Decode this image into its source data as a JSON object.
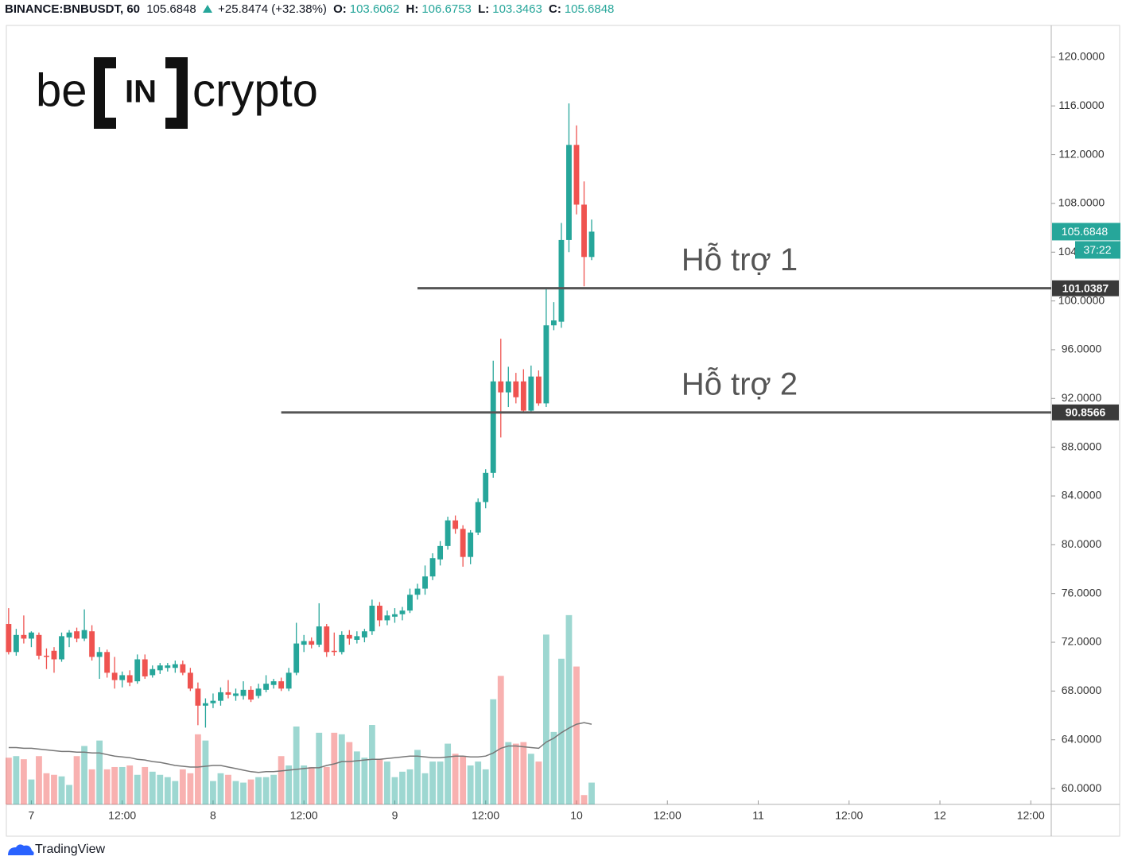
{
  "chart_data": {
    "type": "candlestick",
    "symbol": "BINANCE:BNBUSDT, 60",
    "change": "+25.8474 (+32.38%)",
    "ohlc_labels": [
      "O:",
      "H:",
      "L:",
      "C:"
    ],
    "countdown": "37:22",
    "watermark": {
      "left": "be",
      "mid": "IN",
      "right": "crypto"
    },
    "footer": "TradingView",
    "up_color": "#26a69a",
    "down_color": "#ef5350",
    "x": [
      -3,
      -2,
      -1,
      0,
      1,
      2,
      3,
      4,
      5,
      6,
      7,
      8,
      9,
      10,
      11,
      12,
      13,
      14,
      15,
      16,
      17,
      18,
      19,
      20,
      21,
      22,
      23,
      24,
      25,
      26,
      27,
      28,
      29,
      30,
      31,
      32,
      33,
      34,
      35,
      36,
      37,
      38,
      39,
      40,
      41,
      42,
      43,
      44,
      45,
      46,
      47,
      48,
      49,
      50,
      51,
      52,
      53,
      54,
      55,
      56,
      57,
      58,
      59,
      60,
      61,
      62,
      63,
      64,
      65,
      66,
      67,
      68,
      69,
      70,
      71,
      72,
      73,
      74
    ],
    "open": [
      73.5,
      71.2,
      72.6,
      72.3,
      72.6,
      70.9,
      71.3,
      70.6,
      72.4,
      72.9,
      72.3,
      72.9,
      70.8,
      71.2,
      69.5,
      68.9,
      69.3,
      68.8,
      70.6,
      69.3,
      69.7,
      69.9,
      69.9,
      70.2,
      69.5,
      68.2,
      66.8,
      67.0,
      67.2,
      67.9,
      67.6,
      67.6,
      68.1,
      67.6,
      68.1,
      68.5,
      68.8,
      68.2,
      69.5,
      71.8,
      72.1,
      71.8,
      73.3,
      71.3,
      71.2,
      72.6,
      72.2,
      72.4,
      72.9,
      75.0,
      73.8,
      74.1,
      74.3,
      74.6,
      75.9,
      76.4,
      77.4,
      78.8,
      79.9,
      82.0,
      81.3,
      79.0,
      81.0,
      83.5,
      85.9,
      93.4,
      92.5,
      93.4,
      93.4,
      91.0,
      93.8,
      91.6,
      98.0,
      98.3,
      105.0,
      112.8,
      107.9,
      103.6062
    ],
    "high": [
      74.8,
      73.1,
      74.2,
      72.9,
      72.8,
      71.5,
      71.6,
      72.8,
      73.0,
      73.2,
      74.7,
      73.4,
      71.6,
      71.4,
      70.8,
      69.6,
      69.7,
      71.0,
      71.0,
      70.1,
      70.3,
      70.3,
      70.5,
      70.5,
      69.9,
      68.7,
      67.4,
      67.8,
      68.3,
      68.9,
      68.2,
      68.8,
      68.4,
      68.6,
      69.3,
      69.0,
      69.1,
      69.9,
      73.6,
      72.6,
      72.4,
      75.2,
      73.5,
      72.8,
      72.9,
      73.0,
      72.9,
      73.1,
      75.5,
      75.3,
      74.6,
      74.8,
      74.9,
      76.4,
      76.8,
      78.3,
      79.3,
      80.3,
      82.3,
      82.4,
      81.6,
      81.2,
      83.8,
      86.2,
      95.1,
      96.9,
      94.6,
      94.1,
      94.4,
      94.7,
      94.3,
      101.0,
      99.9,
      106.4,
      116.2,
      114.4,
      109.8,
      106.6753
    ],
    "low": [
      71.0,
      70.9,
      71.9,
      71.6,
      70.6,
      69.8,
      69.5,
      70.4,
      71.6,
      72.0,
      72.1,
      70.5,
      69.0,
      69.1,
      68.2,
      68.3,
      68.4,
      68.6,
      69.0,
      69.1,
      69.4,
      69.6,
      69.5,
      69.3,
      68.0,
      65.2,
      65.0,
      66.6,
      66.8,
      67.4,
      67.2,
      67.3,
      67.1,
      67.4,
      67.9,
      68.2,
      68.0,
      68.0,
      69.3,
      71.2,
      71.5,
      71.6,
      70.8,
      70.9,
      71.0,
      71.8,
      71.9,
      72.0,
      72.6,
      73.3,
      73.4,
      73.6,
      73.8,
      74.4,
      75.5,
      75.9,
      77.1,
      78.3,
      79.6,
      80.9,
      78.2,
      78.4,
      80.8,
      83.0,
      85.5,
      88.8,
      91.3,
      91.6,
      90.9,
      90.9,
      91.4,
      91.3,
      97.6,
      97.8,
      104.0,
      107.1,
      101.2,
      103.3463
    ],
    "close": [
      71.2,
      72.6,
      72.3,
      72.8,
      70.9,
      70.8,
      70.6,
      72.5,
      72.8,
      72.3,
      73.0,
      70.8,
      71.2,
      69.5,
      68.9,
      69.3,
      68.7,
      70.6,
      69.2,
      69.8,
      70.1,
      70.1,
      70.2,
      69.5,
      68.2,
      66.8,
      67.0,
      67.2,
      67.9,
      67.7,
      67.8,
      68.1,
      67.3,
      68.2,
      68.6,
      68.8,
      68.2,
      69.5,
      71.9,
      72.1,
      71.8,
      73.3,
      71.2,
      71.2,
      72.6,
      72.3,
      72.5,
      72.9,
      75.0,
      73.8,
      74.2,
      74.3,
      74.6,
      75.9,
      76.4,
      77.4,
      78.9,
      79.9,
      82.0,
      81.3,
      79.0,
      81.0,
      83.5,
      85.9,
      93.4,
      92.5,
      93.4,
      92.1,
      91.0,
      93.8,
      91.6,
      98.0,
      98.4,
      105.0,
      112.8,
      107.9,
      103.6062,
      105.6848
    ],
    "volume": [
      60,
      62,
      58,
      32,
      62,
      40,
      38,
      36,
      25,
      62,
      75,
      45,
      82,
      45,
      48,
      48,
      50,
      38,
      48,
      42,
      38,
      35,
      30,
      45,
      40,
      90,
      82,
      30,
      40,
      38,
      30,
      28,
      32,
      35,
      35,
      38,
      62,
      50,
      100,
      50,
      48,
      92,
      48,
      92,
      90,
      80,
      68,
      60,
      102,
      58,
      55,
      35,
      42,
      45,
      70,
      40,
      55,
      55,
      78,
      65,
      62,
      50,
      55,
      45,
      135,
      165,
      80,
      78,
      80,
      65,
      55,
      218,
      93,
      187,
      243,
      177,
      12,
      28
    ],
    "volume_ma": [
      73,
      73,
      72,
      72,
      71,
      70,
      69,
      68,
      68,
      67,
      67,
      66,
      66,
      64,
      62,
      61,
      60,
      58,
      57,
      55,
      54,
      52,
      50,
      49,
      48,
      48,
      49,
      50,
      50,
      48,
      46,
      44,
      42,
      41,
      42,
      42,
      43,
      44,
      45,
      46,
      47,
      47,
      50,
      52,
      55,
      55,
      56,
      57,
      58,
      58,
      59,
      60,
      61,
      62,
      62,
      61,
      60,
      60,
      61,
      62,
      62,
      61,
      61,
      62,
      66,
      72,
      75,
      75,
      74,
      73,
      72,
      80,
      85,
      92,
      98,
      103,
      105,
      103
    ],
    "volume_color_up": "rgba(38,166,154,0.45)",
    "volume_color_down": "rgba(239,83,80,0.45)",
    "volume_ma_color": "#777777",
    "vlim": [
      0,
      1000
    ],
    "lines": [
      {
        "name": "Hỗ trợ 1",
        "value": 101.0387,
        "start_x": 51
      },
      {
        "name": "Hỗ trợ 2",
        "value": 90.8566,
        "start_x": 33
      }
    ],
    "xlim": [
      -3.3,
      134.7
    ],
    "xticks": [
      {
        "value": 0,
        "label": "7"
      },
      {
        "value": 12,
        "label": "12:00"
      },
      {
        "value": 24,
        "label": "8"
      },
      {
        "value": 36,
        "label": "12:00"
      },
      {
        "value": 48,
        "label": "9"
      },
      {
        "value": 60,
        "label": "12:00"
      },
      {
        "value": 72,
        "label": "10"
      },
      {
        "value": 84,
        "label": "12:00"
      },
      {
        "value": 96,
        "label": "11"
      },
      {
        "value": 108,
        "label": "12:00"
      },
      {
        "value": 120,
        "label": "12"
      },
      {
        "value": 132,
        "label": "12:00"
      }
    ],
    "ylim": [
      58.7,
      122.6
    ],
    "yticks": [
      {
        "value": 60,
        "label": "60.0000"
      },
      {
        "value": 64,
        "label": "64.0000"
      },
      {
        "value": 68,
        "label": "68.0000"
      },
      {
        "value": 72,
        "label": "72.0000"
      },
      {
        "value": 76,
        "label": "76.0000"
      },
      {
        "value": 80,
        "label": "80.0000"
      },
      {
        "value": 84,
        "label": "84.0000"
      },
      {
        "value": 88,
        "label": "88.0000"
      },
      {
        "value": 92,
        "label": "92.0000"
      },
      {
        "value": 96,
        "label": "96.0000"
      },
      {
        "value": 100,
        "label": "100.0000"
      },
      {
        "value": 104,
        "label": "104.0000"
      },
      {
        "value": 108,
        "label": "108.0000"
      },
      {
        "value": 112,
        "label": "112.0000"
      },
      {
        "value": 116,
        "label": "116.0000"
      },
      {
        "value": 120,
        "label": "120.0000"
      }
    ]
  }
}
